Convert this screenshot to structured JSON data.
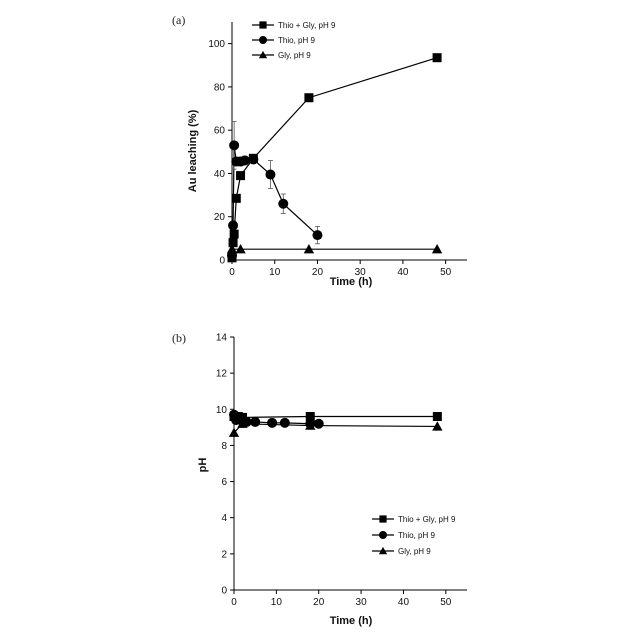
{
  "chart_data": [
    {
      "type": "line",
      "panel_label": "(a)",
      "xlabel": "Time (h)",
      "ylabel": "Au leaching (%)",
      "xlim": [
        0,
        55
      ],
      "ylim": [
        0,
        110
      ],
      "xticks": [
        "0",
        "10",
        "20",
        "30",
        "40",
        "50"
      ],
      "yticks": [
        "0",
        "20",
        "40",
        "60",
        "80",
        "100"
      ],
      "legend_position": "top-left",
      "series": [
        {
          "name": "Thio + Gly, pH 9",
          "marker": "square",
          "x": [
            0,
            0.25,
            0.5,
            1,
            2,
            5,
            18,
            48
          ],
          "y": [
            1,
            8,
            12,
            28.5,
            39,
            47,
            75,
            93.5
          ]
        },
        {
          "name": "Thio, pH 9",
          "marker": "circle",
          "x": [
            0,
            0.25,
            0.5,
            1,
            2,
            3,
            5,
            9,
            12,
            20
          ],
          "y": [
            2,
            16,
            53,
            45.5,
            45.5,
            46,
            46.5,
            39.5,
            26,
            11.5
          ],
          "errors": [
            0,
            0,
            11,
            2,
            2,
            2,
            2,
            6.5,
            4.5,
            4
          ]
        },
        {
          "name": "Gly, pH 9",
          "marker": "triangle",
          "x": [
            0,
            2,
            18,
            48
          ],
          "y": [
            5,
            5,
            5,
            5
          ]
        }
      ]
    },
    {
      "type": "line",
      "panel_label": "(b)",
      "xlabel": "Time (h)",
      "ylabel": "pH",
      "xlim": [
        0,
        55
      ],
      "ylim": [
        0,
        14
      ],
      "xticks": [
        "0",
        "10",
        "20",
        "30",
        "40",
        "50"
      ],
      "yticks": [
        "0",
        "2",
        "4",
        "6",
        "8",
        "10",
        "12",
        "14"
      ],
      "legend_position": "lower-right",
      "series": [
        {
          "name": "Thio + Gly, pH 9",
          "marker": "square",
          "x": [
            0,
            0.5,
            1,
            2,
            18,
            48
          ],
          "y": [
            9.6,
            9.6,
            9.6,
            9.55,
            9.6,
            9.6
          ]
        },
        {
          "name": "Thio, pH 9",
          "marker": "circle",
          "x": [
            0,
            0.5,
            1,
            2,
            3,
            5,
            9,
            12,
            18,
            20
          ],
          "y": [
            9.7,
            9.4,
            9.5,
            9.35,
            9.3,
            9.3,
            9.25,
            9.25,
            9.2,
            9.2
          ]
        },
        {
          "name": "Gly, pH 9",
          "marker": "triangle",
          "x": [
            0,
            2,
            18,
            48
          ],
          "y": [
            8.7,
            9.2,
            9.1,
            9.05
          ]
        }
      ]
    }
  ]
}
